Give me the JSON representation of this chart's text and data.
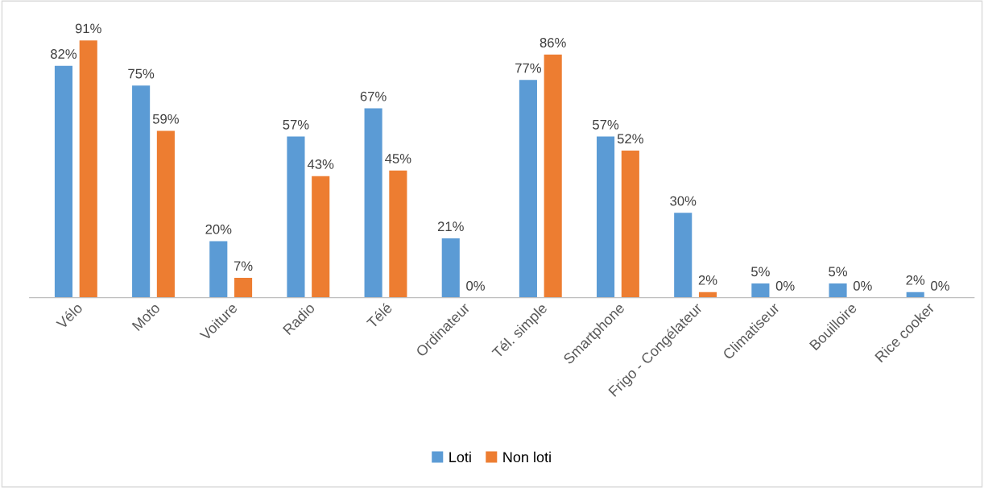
{
  "chart_data": {
    "type": "bar",
    "categories": [
      "Vélo",
      "Moto",
      "Voiture",
      "Radio",
      "Télé",
      "Ordinateur",
      "Tél. simple",
      "Smartphone",
      "Frigo - Congélateur",
      "Climatiseur",
      "Bouilloire",
      "Rice cooker"
    ],
    "series": [
      {
        "name": "Loti",
        "color": "#5b9bd5",
        "values": [
          82,
          75,
          20,
          57,
          67,
          21,
          77,
          57,
          30,
          5,
          5,
          2
        ],
        "value_labels": [
          "82%",
          "75%",
          "20%",
          "57%",
          "67%",
          "21%",
          "77%",
          "57%",
          "30%",
          "5%",
          "5%",
          "2%"
        ]
      },
      {
        "name": "Non loti",
        "color": "#ed7d31",
        "values": [
          91,
          59,
          7,
          43,
          45,
          0,
          86,
          52,
          2,
          0,
          0,
          0
        ],
        "value_labels": [
          "91%",
          "59%",
          "7%",
          "43%",
          "45%",
          "0%",
          "86%",
          "52%",
          "2%",
          "0%",
          "0%",
          "0%"
        ]
      }
    ],
    "legend": "bottom"
  }
}
